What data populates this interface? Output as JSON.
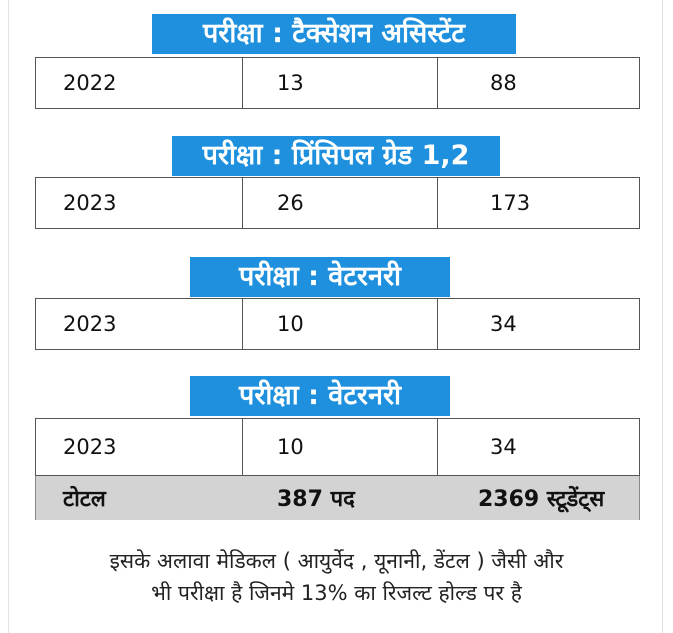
{
  "sections": [
    {
      "header": "परीक्षा : टैक्सेशन असिस्टेंट",
      "year": "2022",
      "posts": "13",
      "students": "88"
    },
    {
      "header": "परीक्षा : प्रिंसिपल ग्रेड 1,2",
      "year": "2023",
      "posts": "26",
      "students": "173"
    },
    {
      "header": "परीक्षा : वेटरनरी",
      "year": "2023",
      "posts": "10",
      "students": "34"
    },
    {
      "header": "परीक्षा : वेटरनरी",
      "year": "2023",
      "posts": "10",
      "students": "34"
    }
  ],
  "total": {
    "label": "टोटल",
    "posts": "387 पद",
    "students": "2369 स्टूडेंट्स"
  },
  "footnote": {
    "line1": "इसके अलावा मेडिकल ( आयुर्वेद , यूनानी, डेंटल ) जैसी और",
    "line2": "भी परीक्षा है जिनमे 13% का रिजल्ट होल्ड पर है"
  },
  "colors": {
    "header_bg": "#1e90dd",
    "total_bg": "#d3d3d3"
  }
}
